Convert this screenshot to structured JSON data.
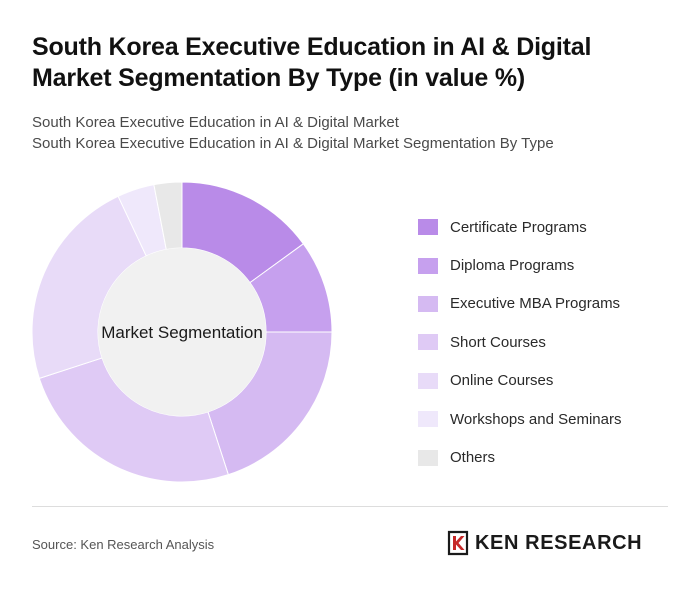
{
  "header": {
    "title_line1": "South Korea Executive Education in AI & Digital",
    "title_line2": "Market Segmentation By Type (in value %)",
    "subtitle_line1": "South Korea Executive Education in AI & Digital Market",
    "subtitle_line2": "South Korea Executive Education in AI & Digital Market Segmentation By Type"
  },
  "chart_data": {
    "type": "pie",
    "donut": true,
    "center_label": "Market Segmentation",
    "categories": [
      "Certificate Programs",
      "Diploma Programs",
      "Executive MBA Programs",
      "Short Courses",
      "Online Courses",
      "Workshops and Seminars",
      "Others"
    ],
    "values": [
      15,
      10,
      20,
      25,
      23,
      4,
      3
    ],
    "colors": [
      "#b98be8",
      "#c6a0ee",
      "#d5baf2",
      "#dfcaf5",
      "#e8dbf8",
      "#efe8fb",
      "#e8e8e8"
    ],
    "legend_position": "right"
  },
  "footer": {
    "source": "Source: Ken Research Analysis",
    "logo_text": "KEN RESEARCH"
  }
}
